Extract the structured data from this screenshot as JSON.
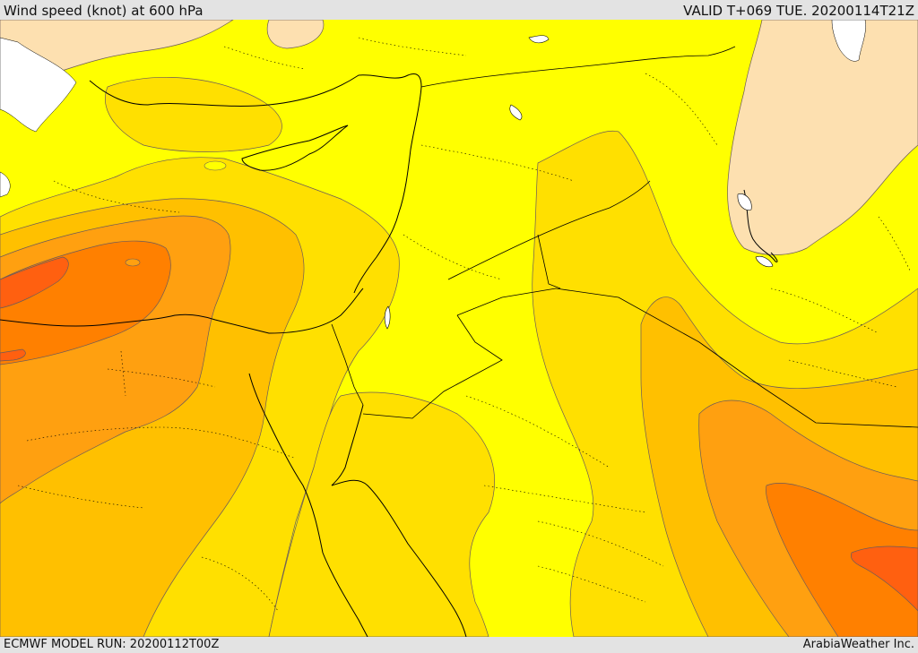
{
  "header": {
    "title": "Wind speed (knot) at 600 hPa",
    "valid": "VALID T+069 TUE. 20200114T21Z"
  },
  "footer": {
    "model_run": "ECMWF MODEL RUN: 20200112T00Z",
    "credit": "ArabiaWeather Inc."
  },
  "map": {
    "variable": "wind speed",
    "level": "600 hPa",
    "region": "Eastern Mediterranean and Middle East",
    "colors": {
      "band_lightest": "#fde0b0",
      "band_yellow": "#ffff00",
      "band_gold": "#ffe000",
      "band_amber": "#ffc000",
      "band_orange": "#ffa010",
      "band_dark_orange": "#ff8000",
      "band_red_orange": "#ff6010",
      "contour": "#6b5a5a",
      "coast": "#000000",
      "sea_ice_white": "#ffffff"
    }
  }
}
